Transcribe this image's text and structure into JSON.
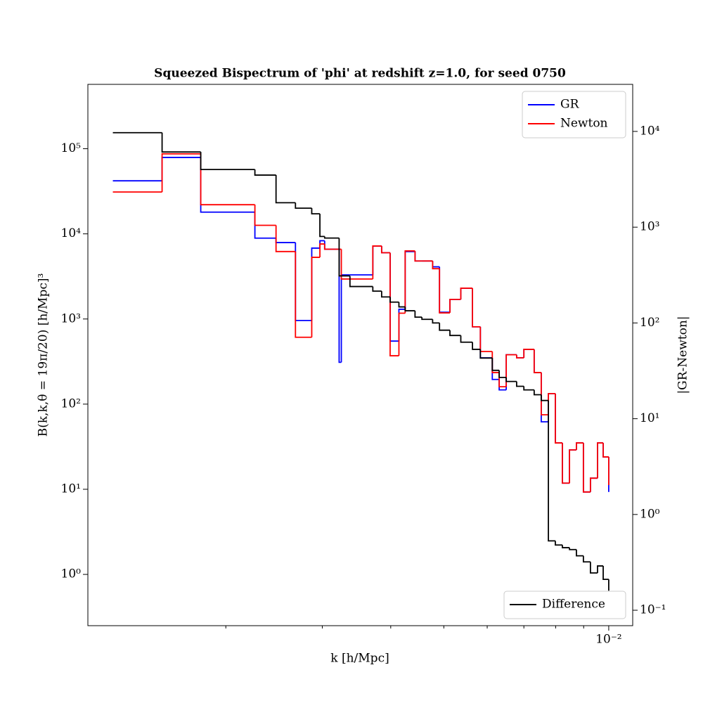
{
  "chart_data": {
    "type": "line",
    "drawstyle": "steps-post",
    "title": "Squeezed Bispectrum of 'phi' at redshift z=1.0, for seed 0750",
    "xlabel": "k [h/Mpc]",
    "ylabel": "B(k,k,θ = 19π/20) [h/Mpc]³",
    "y2label": "|GR-Newton|",
    "xscale": "log",
    "yscale": "log",
    "y2scale": "log",
    "xlim": [
      0.00112,
      0.01106
    ],
    "ylim": [
      0.25,
      570000
    ],
    "y2lim": [
      0.069,
      31000
    ],
    "xticks": [
      {
        "value": 0.01,
        "label": "10⁻²"
      }
    ],
    "xminorticks": [
      0.002,
      0.003,
      0.004,
      0.005,
      0.006,
      0.007,
      0.008,
      0.009
    ],
    "yticks": [
      {
        "value": 1,
        "label": "10⁰"
      },
      {
        "value": 10,
        "label": "10¹"
      },
      {
        "value": 100,
        "label": "10²"
      },
      {
        "value": 1000,
        "label": "10³"
      },
      {
        "value": 10000,
        "label": "10⁴"
      },
      {
        "value": 100000,
        "label": "10⁵"
      }
    ],
    "y2ticks": [
      {
        "value": 0.1,
        "label": "10⁻¹"
      },
      {
        "value": 1,
        "label": "10⁰"
      },
      {
        "value": 10,
        "label": "10¹"
      },
      {
        "value": 100,
        "label": "10²"
      },
      {
        "value": 1000,
        "label": "10³"
      },
      {
        "value": 10000,
        "label": "10⁴"
      }
    ],
    "legend": {
      "y": "upper right",
      "y2": "lower right"
    },
    "x": [
      0.001244,
      0.00153,
      0.0018,
      0.00226,
      0.00247,
      0.00268,
      0.00287,
      0.00297,
      0.00303,
      0.00322,
      0.00325,
      0.00337,
      0.00371,
      0.00385,
      0.00399,
      0.00414,
      0.00425,
      0.00443,
      0.00456,
      0.00477,
      0.00491,
      0.00513,
      0.00537,
      0.00564,
      0.00583,
      0.00613,
      0.00631,
      0.0065,
      0.00679,
      0.007,
      0.00731,
      0.00753,
      0.00776,
      0.00799,
      0.00823,
      0.00848,
      0.00873,
      0.00899,
      0.00926,
      0.00954,
      0.00977,
      0.01
    ],
    "series": [
      {
        "name": "GR",
        "color": "#0000ff",
        "values": [
          42000,
          79000,
          18000,
          8900,
          7900,
          960,
          6800,
          8300,
          6600,
          310,
          3300,
          3300,
          7200,
          6000,
          550,
          1300,
          6200,
          4800,
          4800,
          4100,
          1200,
          1700,
          2300,
          810,
          350,
          195,
          147,
          380,
          350,
          440,
          235,
          62,
          133,
          35,
          11.8,
          29,
          35,
          9.3,
          13.5,
          35,
          24,
          9.3
        ]
      },
      {
        "name": "Newton",
        "color": "#ff0000",
        "values": [
          31000,
          87000,
          22000,
          12600,
          6200,
          610,
          5300,
          7600,
          6600,
          6600,
          2950,
          2950,
          7200,
          6000,
          370,
          1170,
          6300,
          4800,
          4800,
          3900,
          1180,
          1700,
          2300,
          810,
          415,
          235,
          160,
          380,
          350,
          440,
          235,
          75,
          133,
          35,
          11.8,
          29,
          35,
          9.3,
          13.5,
          35,
          24,
          11.2
        ]
      },
      {
        "name": "Difference",
        "color": "#000000",
        "axis": "y2",
        "values": [
          9700,
          6100,
          4000,
          3500,
          1800,
          1580,
          1380,
          800,
          770,
          310,
          310,
          240,
          215,
          187,
          165,
          147,
          134,
          115,
          109,
          100,
          84,
          74,
          63,
          53,
          43,
          32,
          27,
          24.5,
          21.8,
          20,
          17.8,
          15.5,
          0.53,
          0.48,
          0.45,
          0.43,
          0.37,
          0.32,
          0.245,
          0.29,
          0.21,
          0.16
        ]
      }
    ]
  }
}
